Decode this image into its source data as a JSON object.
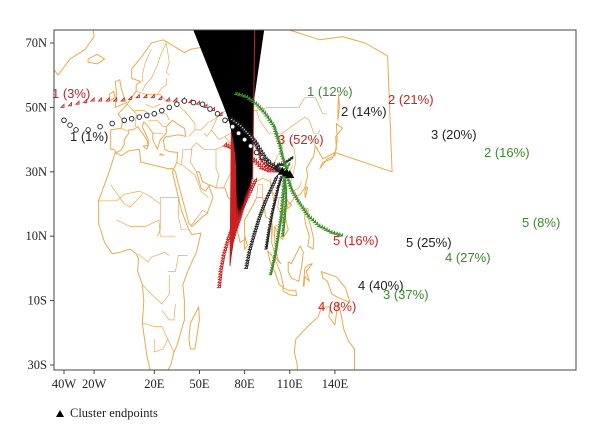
{
  "colors": {
    "coastline": "#f0a850",
    "red": "#cc2222",
    "black": "#222222",
    "green": "#3a8a2a",
    "frame": "#444444"
  },
  "axes": {
    "x_ticks": [
      {
        "lon": -40,
        "label": "40W"
      },
      {
        "lon": -20,
        "label": "20W"
      },
      {
        "lon": 20,
        "label": "20E"
      },
      {
        "lon": 50,
        "label": "50E"
      },
      {
        "lon": 80,
        "label": "80E"
      },
      {
        "lon": 110,
        "label": "110E"
      },
      {
        "lon": 140,
        "label": "140E"
      }
    ],
    "y_ticks": [
      {
        "lat": 70,
        "label": "70N"
      },
      {
        "lat": 50,
        "label": "50N"
      },
      {
        "lat": 30,
        "label": "30N"
      },
      {
        "lat": 10,
        "label": "10N"
      },
      {
        "lat": -10,
        "label": "10S"
      },
      {
        "lat": -30,
        "label": "30S"
      }
    ]
  },
  "endpoint": {
    "lon": 107,
    "lat": 29
  },
  "clusters": [
    {
      "id": "red-1",
      "color": "red",
      "marker": "triangle-open",
      "label": "1 (3%)",
      "path": [
        [
          -40,
          50
        ],
        [
          -30,
          51
        ],
        [
          -20,
          52
        ],
        [
          -10,
          52
        ],
        [
          0,
          52
        ],
        [
          10,
          53
        ],
        [
          20,
          53
        ],
        [
          30,
          52
        ],
        [
          40,
          52
        ],
        [
          50,
          51
        ],
        [
          60,
          49
        ],
        [
          70,
          46
        ],
        [
          78,
          42
        ],
        [
          85,
          38
        ],
        [
          92,
          34
        ],
        [
          100,
          32
        ],
        [
          105,
          30
        ]
      ]
    },
    {
      "id": "red-2",
      "color": "red",
      "marker": "star",
      "label": "2 (21%)",
      "path": [
        [
          72,
          44
        ],
        [
          78,
          43
        ],
        [
          84,
          41
        ],
        [
          88,
          39
        ],
        [
          90,
          36
        ],
        [
          92,
          33
        ],
        [
          96,
          31
        ],
        [
          101,
          30
        ],
        [
          105,
          30
        ]
      ]
    },
    {
      "id": "red-3",
      "color": "red",
      "marker": "triangle-open",
      "label": "3 (52%)",
      "path": [
        [
          68,
          38
        ],
        [
          74,
          37
        ],
        [
          79,
          36
        ],
        [
          84,
          34
        ],
        [
          88,
          33
        ],
        [
          92,
          31
        ],
        [
          97,
          30
        ],
        [
          102,
          30
        ],
        [
          105,
          30
        ]
      ]
    },
    {
      "id": "red-4",
      "color": "red",
      "marker": "triangle-open",
      "label": "4 (8%)",
      "path": [
        [
          64,
          -6
        ],
        [
          65,
          -1
        ],
        [
          67,
          4
        ],
        [
          70,
          9
        ],
        [
          74,
          14
        ],
        [
          79,
          18
        ],
        [
          83,
          22
        ],
        [
          86,
          25
        ],
        [
          88,
          27
        ]
      ]
    },
    {
      "id": "red-5",
      "color": "red",
      "marker": "x",
      "label": "5 (16%)",
      "path": [
        [
          72,
          0
        ],
        [
          73,
          5
        ],
        [
          76,
          10
        ],
        [
          79,
          14
        ],
        [
          82,
          19
        ],
        [
          85,
          23
        ],
        [
          87,
          27
        ]
      ]
    },
    {
      "id": "black-1",
      "color": "black",
      "marker": "circle-open",
      "label": "1 (1%)",
      "path": [
        [
          -40,
          46
        ],
        [
          -32,
          43
        ],
        [
          -24,
          43
        ],
        [
          -16,
          44
        ],
        [
          -8,
          45
        ],
        [
          0,
          46
        ],
        [
          10,
          47
        ],
        [
          20,
          48
        ],
        [
          30,
          50
        ],
        [
          40,
          52
        ],
        [
          52,
          51
        ],
        [
          62,
          48
        ],
        [
          72,
          44
        ],
        [
          80,
          40
        ],
        [
          88,
          36
        ],
        [
          96,
          33
        ],
        [
          102,
          31
        ],
        [
          106,
          30
        ]
      ]
    },
    {
      "id": "black-2",
      "color": "black",
      "marker": "diamond-open",
      "label": "2 (14%)",
      "path": [
        [
          72,
          46
        ],
        [
          78,
          44
        ],
        [
          84,
          41
        ],
        [
          89,
          38
        ],
        [
          93,
          35
        ],
        [
          97,
          32
        ],
        [
          101,
          31
        ],
        [
          105,
          30
        ]
      ]
    },
    {
      "id": "black-3",
      "color": "black",
      "marker": "star",
      "label": "3 (20%)",
      "path": [
        [
          112,
          34
        ],
        [
          109,
          33
        ],
        [
          106,
          32
        ],
        [
          103,
          32
        ],
        [
          101,
          31
        ],
        [
          103,
          30
        ],
        [
          105,
          30
        ]
      ]
    },
    {
      "id": "black-4",
      "color": "black",
      "marker": "diamond-open",
      "label": "4 (40%)",
      "path": [
        [
          82,
          0
        ],
        [
          84,
          5
        ],
        [
          87,
          10
        ],
        [
          91,
          16
        ],
        [
          95,
          21
        ],
        [
          99,
          25
        ],
        [
          102,
          28
        ]
      ]
    },
    {
      "id": "black-5",
      "color": "black",
      "marker": "star",
      "label": "5 (25%)",
      "path": [
        [
          95,
          6
        ],
        [
          97,
          12
        ],
        [
          99,
          17
        ],
        [
          101,
          21
        ],
        [
          103,
          25
        ],
        [
          105,
          28
        ]
      ]
    },
    {
      "id": "green-1",
      "color": "green",
      "marker": "star",
      "label": "1 (12%)",
      "path": [
        [
          75,
          54
        ],
        [
          82,
          53
        ],
        [
          88,
          51
        ],
        [
          94,
          48
        ],
        [
          100,
          44
        ],
        [
          104,
          38
        ],
        [
          106,
          34
        ],
        [
          108,
          31
        ]
      ]
    },
    {
      "id": "green-2",
      "color": "green",
      "marker": "star",
      "label": "2 (16%)",
      "path": [
        [
          110,
          32
        ],
        [
          109,
          31
        ],
        [
          108,
          30
        ]
      ]
    },
    {
      "id": "green-3",
      "color": "green",
      "marker": "star",
      "label": "3 (37%)",
      "path": [
        [
          98,
          -2
        ],
        [
          101,
          4
        ],
        [
          103,
          10
        ],
        [
          105,
          16
        ],
        [
          106,
          22
        ],
        [
          107,
          27
        ]
      ]
    },
    {
      "id": "green-4",
      "color": "green",
      "marker": "star",
      "label": "4 (27%)",
      "path": [
        [
          106,
          10
        ],
        [
          107,
          15
        ],
        [
          108,
          20
        ],
        [
          108,
          24
        ],
        [
          107,
          28
        ]
      ]
    },
    {
      "id": "green-5",
      "color": "green",
      "marker": "star",
      "label": "5 (8%)",
      "path": [
        [
          145,
          10
        ],
        [
          138,
          11
        ],
        [
          130,
          13
        ],
        [
          123,
          16
        ],
        [
          117,
          20
        ],
        [
          112,
          24
        ],
        [
          109,
          28
        ]
      ]
    }
  ],
  "labels": [
    {
      "text_ref": "red-1",
      "color": "red"
    },
    {
      "text_ref": "black-1",
      "color": "black"
    },
    {
      "text_ref": "green-1",
      "color": "green"
    },
    {
      "text_ref": "red-2",
      "color": "red"
    },
    {
      "text_ref": "black-2",
      "color": "black"
    },
    {
      "text_ref": "red-3",
      "color": "red"
    },
    {
      "text_ref": "black-3",
      "color": "black"
    },
    {
      "text_ref": "green-2",
      "color": "green"
    },
    {
      "text_ref": "red-5",
      "color": "red"
    },
    {
      "text_ref": "black-5",
      "color": "black"
    },
    {
      "text_ref": "black-4",
      "color": "black"
    },
    {
      "text_ref": "red-4",
      "color": "red"
    },
    {
      "text_ref": "green-3",
      "color": "green"
    },
    {
      "text_ref": "green-4",
      "color": "green"
    },
    {
      "text_ref": "green-5",
      "color": "green"
    }
  ],
  "legend": {
    "text": "Cluster endpoints",
    "marker": "filled-triangle"
  }
}
